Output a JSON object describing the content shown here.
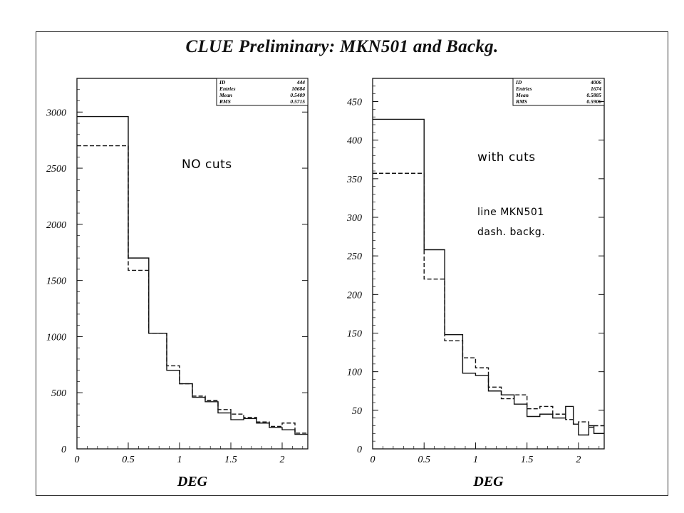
{
  "title": "CLUE Preliminary: MKN501 and Backg.",
  "chart_data": [
    {
      "type": "histogram",
      "xlabel": "DEG",
      "ylabel": "",
      "xlim": [
        0,
        2.25
      ],
      "ylim": [
        0,
        3300
      ],
      "x_ticks": [
        "0",
        "0.5",
        "1",
        "1.5",
        "2"
      ],
      "y_ticks": [
        "0",
        "500",
        "1000",
        "1500",
        "2000",
        "2500",
        "3000"
      ],
      "annotation": "NO cuts",
      "stats_box": {
        "labels": [
          "ID",
          "Entries",
          "Mean",
          "RMS"
        ],
        "values": [
          "444",
          "10684",
          "0.5409",
          "0.5715"
        ]
      },
      "bin_edges": [
        0,
        0.5,
        0.7,
        0.875,
        1.0,
        1.125,
        1.25,
        1.375,
        1.5,
        1.625,
        1.75,
        1.875,
        2.0,
        2.125,
        2.25
      ],
      "series": [
        {
          "style": "solid",
          "values": [
            2960,
            1700,
            1030,
            700,
            580,
            460,
            420,
            320,
            260,
            270,
            230,
            190,
            170,
            130
          ]
        },
        {
          "style": "dashed",
          "values": [
            2700,
            1590,
            1030,
            740,
            580,
            470,
            430,
            350,
            310,
            280,
            240,
            200,
            230,
            140
          ]
        }
      ]
    },
    {
      "type": "histogram",
      "xlabel": "DEG",
      "ylabel": "",
      "xlim": [
        0,
        2.25
      ],
      "ylim": [
        0,
        480
      ],
      "x_ticks": [
        "0",
        "0.5",
        "1",
        "1.5",
        "2"
      ],
      "y_ticks": [
        "0",
        "50",
        "100",
        "150",
        "200",
        "250",
        "300",
        "350",
        "400",
        "450"
      ],
      "annotation": "with cuts",
      "annotation_lines": [
        "line  MKN501",
        "dash. backg."
      ],
      "stats_box": {
        "labels": [
          "ID",
          "Entries",
          "Mean",
          "RMS"
        ],
        "values": [
          "4006",
          "1674",
          "0.5885",
          "0.5906"
        ]
      },
      "bin_edges": [
        0,
        0.5,
        0.7,
        0.875,
        1.0,
        1.125,
        1.25,
        1.375,
        1.5,
        1.625,
        1.75,
        1.875,
        1.95,
        2.0,
        2.1,
        2.15,
        2.25
      ],
      "series": [
        {
          "style": "solid",
          "values": [
            427,
            258,
            148,
            98,
            95,
            75,
            70,
            58,
            42,
            45,
            40,
            55,
            32,
            18,
            30,
            20
          ]
        },
        {
          "style": "dashed",
          "values": [
            357,
            220,
            140,
            118,
            105,
            80,
            65,
            70,
            52,
            55,
            45,
            38,
            32,
            35,
            28,
            30
          ]
        }
      ]
    }
  ]
}
